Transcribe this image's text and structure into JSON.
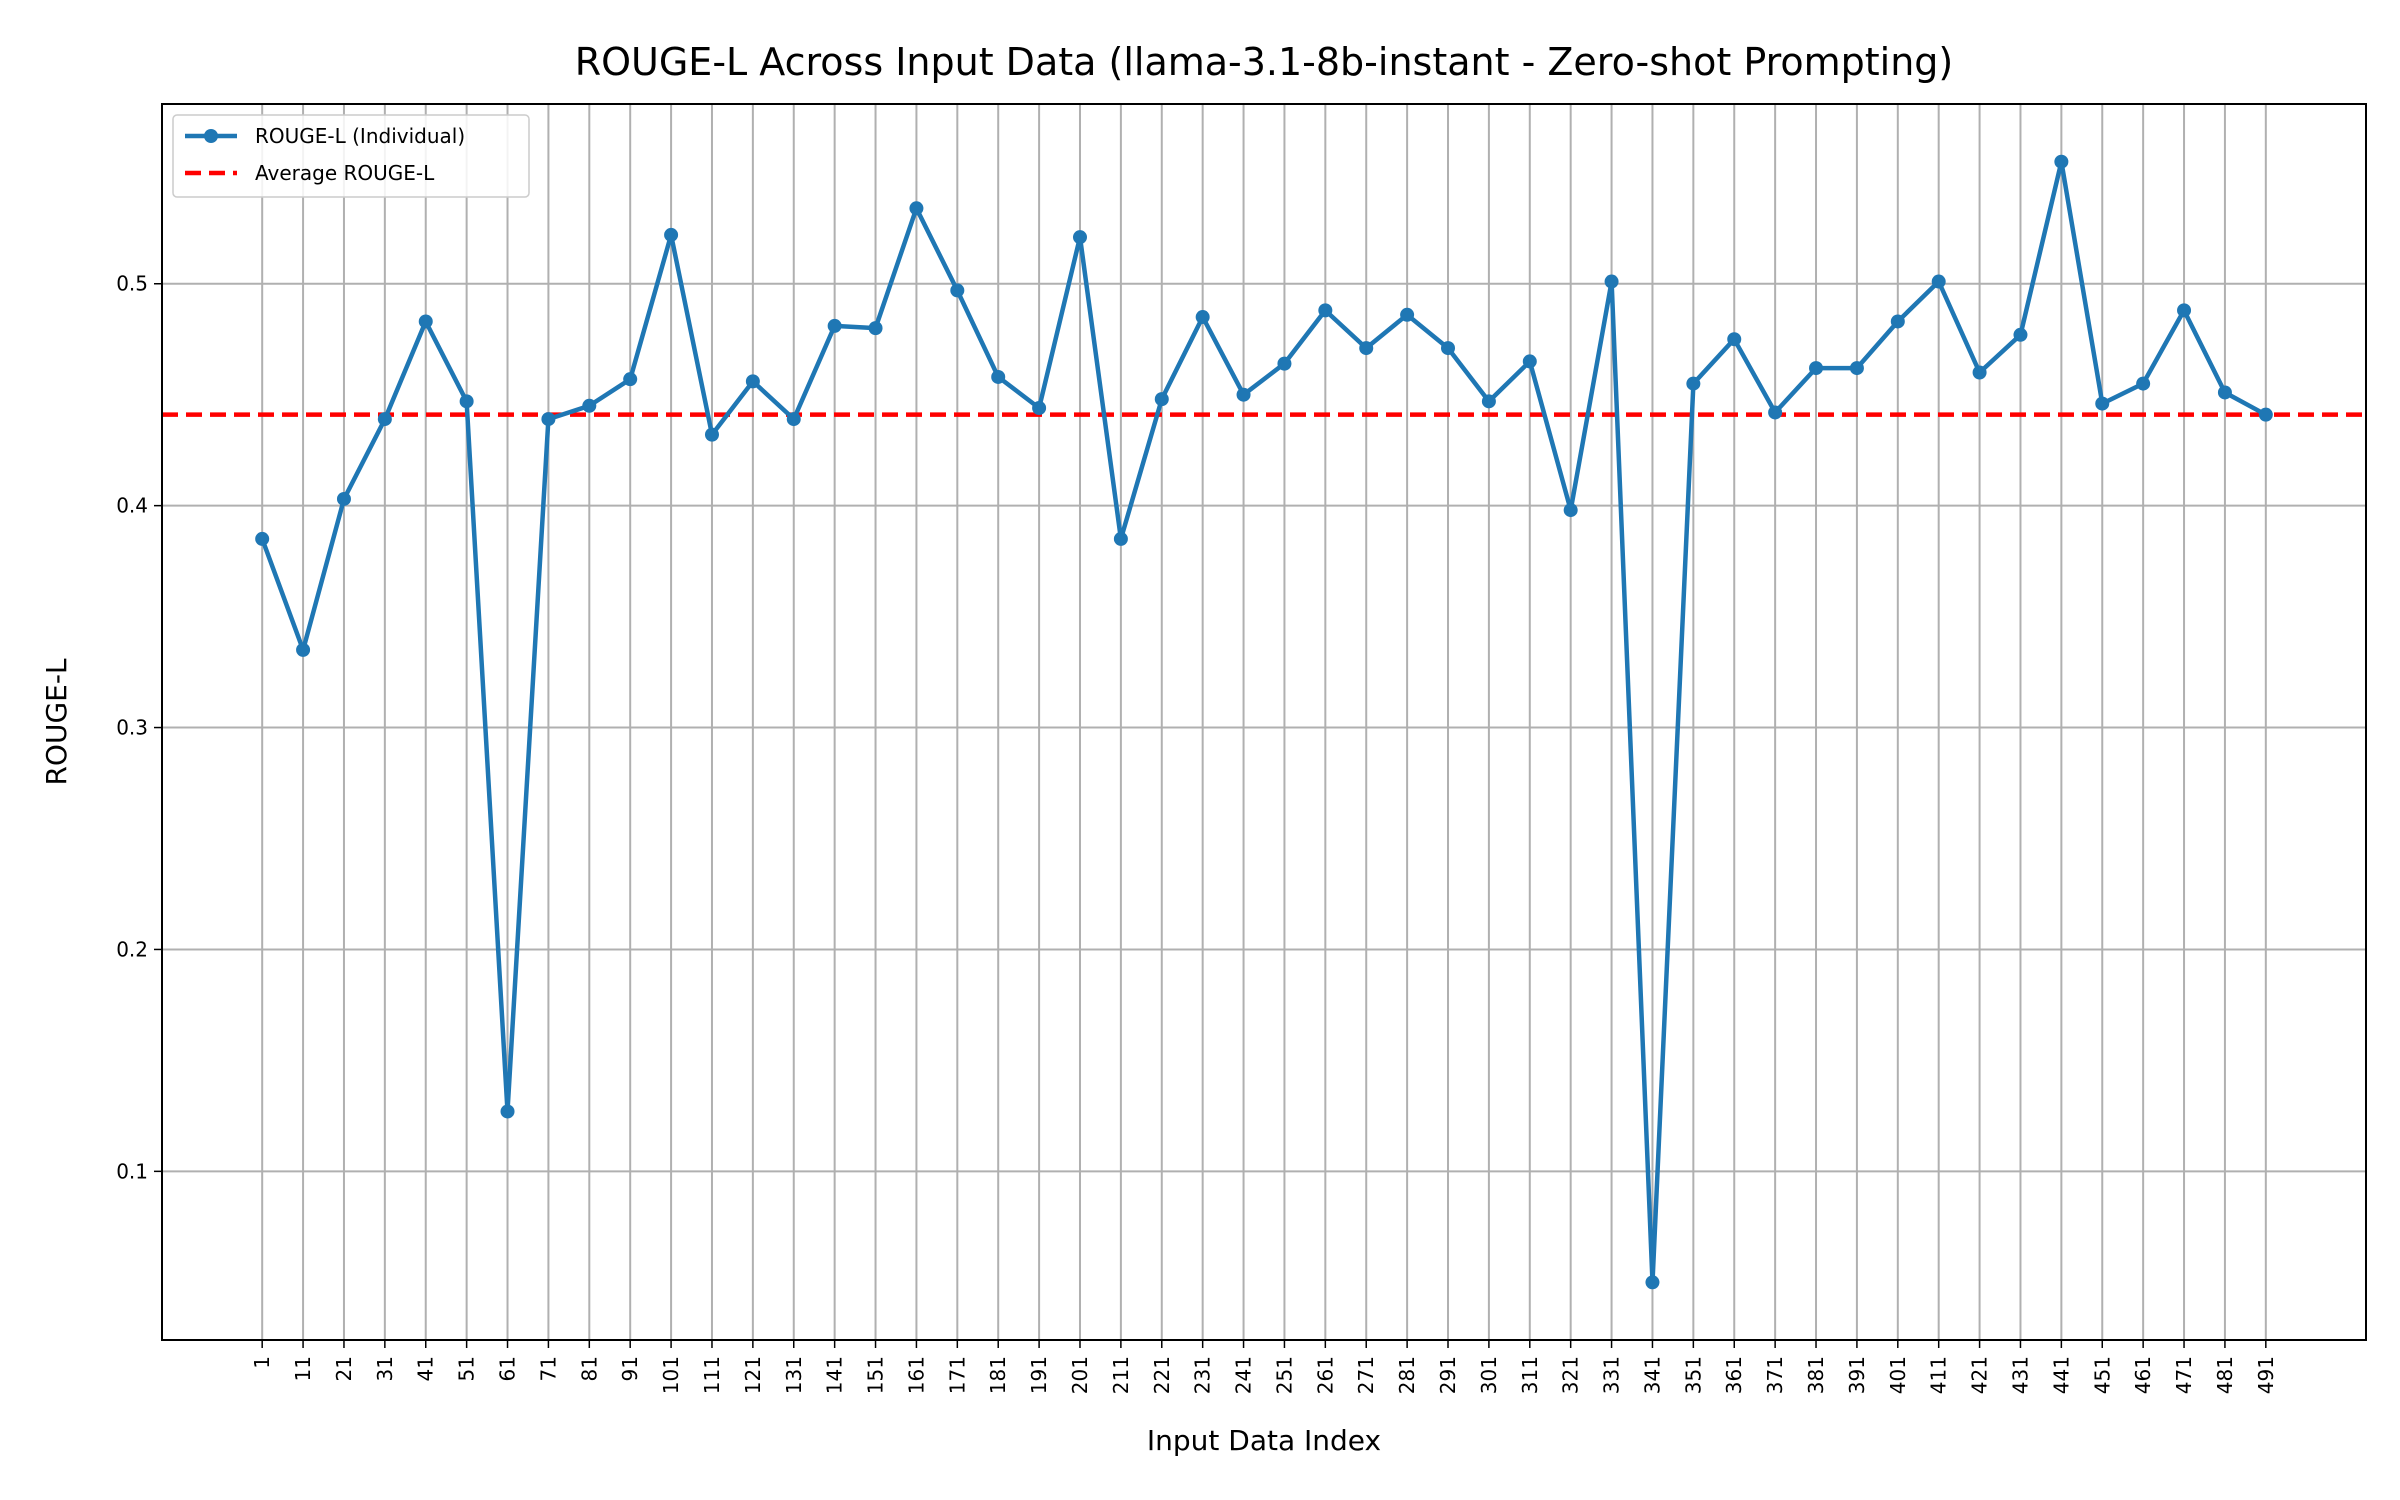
{
  "chart_data": {
    "type": "line",
    "title": "ROUGE-L Across Input Data (llama-3.1-8b-instant - Zero-shot Prompting)",
    "xlabel": "Input Data Index",
    "ylabel": "ROUGE-L",
    "x": [
      1,
      11,
      21,
      31,
      41,
      51,
      61,
      71,
      81,
      91,
      101,
      111,
      121,
      131,
      141,
      151,
      161,
      171,
      181,
      191,
      201,
      211,
      221,
      231,
      241,
      251,
      261,
      271,
      281,
      291,
      301,
      311,
      321,
      331,
      341,
      351,
      361,
      371,
      381,
      391,
      401,
      411,
      421,
      431,
      441,
      451,
      461,
      471,
      481,
      491
    ],
    "xticks": [
      "1",
      "11",
      "21",
      "31",
      "41",
      "51",
      "61",
      "71",
      "81",
      "91",
      "101",
      "111",
      "121",
      "131",
      "141",
      "151",
      "161",
      "171",
      "181",
      "191",
      "201",
      "211",
      "221",
      "231",
      "241",
      "251",
      "261",
      "271",
      "281",
      "291",
      "301",
      "311",
      "321",
      "331",
      "341",
      "351",
      "361",
      "371",
      "381",
      "391",
      "401",
      "411",
      "421",
      "431",
      "441",
      "451",
      "461",
      "471",
      "481",
      "491"
    ],
    "yticks": [
      "0.1",
      "0.2",
      "0.3",
      "0.4",
      "0.5"
    ],
    "series": [
      {
        "name": "ROUGE-L (Individual)",
        "color": "#1f77b4",
        "style": "solid-with-markers",
        "values": [
          0.385,
          0.335,
          0.403,
          0.439,
          0.483,
          0.447,
          0.127,
          0.439,
          0.445,
          0.457,
          0.522,
          0.432,
          0.456,
          0.439,
          0.481,
          0.48,
          0.534,
          0.497,
          0.458,
          0.444,
          0.521,
          0.385,
          0.448,
          0.485,
          0.45,
          0.464,
          0.488,
          0.471,
          0.486,
          0.471,
          0.447,
          0.465,
          0.398,
          0.501,
          0.05,
          0.455,
          0.475,
          0.442,
          0.462,
          0.462,
          0.483,
          0.501,
          0.46,
          0.477,
          0.555,
          0.446,
          0.455,
          0.488,
          0.451,
          0.441
        ]
      },
      {
        "name": "Average ROUGE-L",
        "color": "#ff0000",
        "style": "dashed",
        "value": 0.441
      }
    ],
    "xlim": [
      -23.5,
      515.5
    ],
    "ylim": [
      0.024,
      0.581
    ],
    "grid": true,
    "legend_position": "upper-left"
  }
}
